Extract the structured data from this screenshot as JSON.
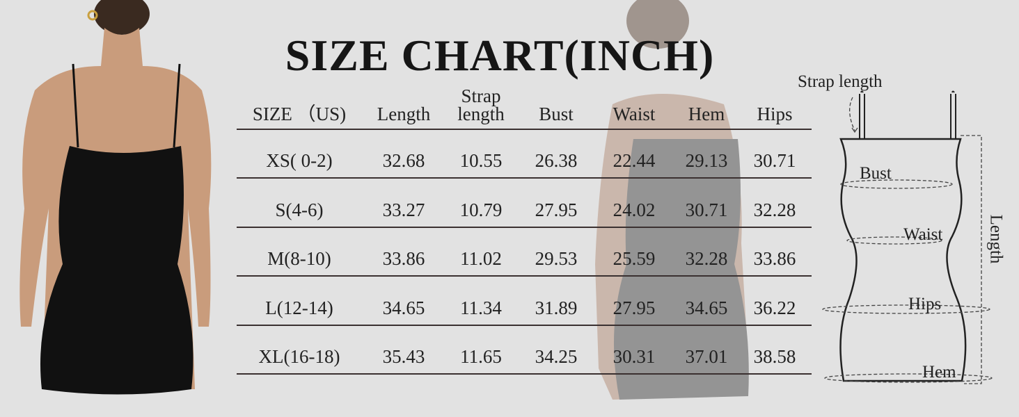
{
  "title": "SIZE CHART(INCH)",
  "table": {
    "headers": [
      "SIZE （US)",
      "Length",
      "Strap length",
      "Bust",
      "Waist",
      "Hem",
      "Hips"
    ],
    "strap_header_lines": [
      "Strap",
      "length"
    ],
    "rows": [
      [
        "XS( 0-2)",
        "32.68",
        "10.55",
        "26.38",
        "22.44",
        "29.13",
        "30.71"
      ],
      [
        "S(4-6)",
        "33.27",
        "10.79",
        "27.95",
        "24.02",
        "30.71",
        "32.28"
      ],
      [
        "M(8-10)",
        "33.86",
        "11.02",
        "29.53",
        "25.59",
        "32.28",
        "33.86"
      ],
      [
        "L(12-14)",
        "34.65",
        "11.34",
        "31.89",
        "27.95",
        "34.65",
        "36.22"
      ],
      [
        "XL(16-18)",
        "35.43",
        "11.65",
        "34.25",
        "30.31",
        "37.01",
        "38.58"
      ]
    ]
  },
  "diagram": {
    "strap_length": "Strap length",
    "bust": "Bust",
    "waist": "Waist",
    "hips": "Hips",
    "hem": "Hem",
    "length": "Length"
  },
  "colors": {
    "background": "#e2e2e2",
    "dress": "#111111",
    "rule": "#3a3030"
  }
}
